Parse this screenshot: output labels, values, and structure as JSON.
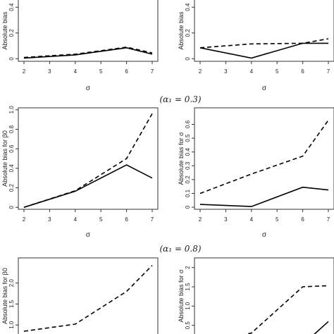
{
  "captions": [
    "(α₁ = 0.3)",
    "(α₁ = 0.8)"
  ],
  "chart_data": [
    {
      "type": "line",
      "ylabel": "Absolute bias",
      "xlabel": "σ",
      "x": [
        2,
        4,
        6,
        7
      ],
      "xticks": [
        2,
        3,
        4,
        5,
        6,
        7
      ],
      "ylim": [
        -0.02,
        0.62
      ],
      "yticks": [
        0.0,
        0.2,
        0.4
      ],
      "ytick_labels": [
        "0",
        "0.2",
        "0.4"
      ],
      "series": [
        {
          "style": "solid",
          "values": [
            0.005,
            0.03,
            0.085,
            0.035
          ]
        },
        {
          "style": "dashed",
          "values": [
            0.01,
            0.035,
            0.09,
            0.045
          ]
        }
      ]
    },
    {
      "type": "line",
      "ylabel": "Absolute bias",
      "xlabel": "σ",
      "x": [
        2,
        4,
        6,
        7
      ],
      "xticks": [
        2,
        3,
        4,
        5,
        6,
        7
      ],
      "ylim": [
        -0.02,
        0.62
      ],
      "yticks": [
        0.0,
        0.2,
        0.4
      ],
      "ytick_labels": [
        "0",
        "0.2",
        "0.4"
      ],
      "series": [
        {
          "style": "solid",
          "values": [
            0.085,
            0.005,
            0.12,
            0.12
          ]
        },
        {
          "style": "dashed",
          "values": [
            0.085,
            0.115,
            0.12,
            0.155
          ]
        }
      ]
    },
    {
      "type": "line",
      "ylabel": "Absolute bias for β0",
      "xlabel": "σ",
      "x": [
        2,
        4,
        6,
        7
      ],
      "xticks": [
        2,
        3,
        4,
        5,
        6,
        7
      ],
      "ylim": [
        -0.02,
        1.02
      ],
      "yticks": [
        0.0,
        0.2,
        0.4,
        0.6,
        0.8,
        1.0
      ],
      "ytick_labels": [
        "0",
        "0.2",
        "0.4",
        "0.6",
        "0.8",
        "1.0"
      ],
      "series": [
        {
          "style": "solid",
          "values": [
            0.0,
            0.165,
            0.435,
            0.3
          ]
        },
        {
          "style": "dashed",
          "values": [
            0.0,
            0.17,
            0.5,
            0.96
          ]
        }
      ]
    },
    {
      "type": "line",
      "ylabel": "Absolute bias for σ",
      "xlabel": "σ",
      "x": [
        2,
        4,
        6,
        7
      ],
      "xticks": [
        2,
        3,
        4,
        5,
        6,
        7
      ],
      "ylim": [
        -0.015,
        0.72
      ],
      "yticks": [
        0.0,
        0.1,
        0.2,
        0.3,
        0.4,
        0.5,
        0.6
      ],
      "ytick_labels": [
        "0",
        "0.1",
        "0.2",
        "0.3",
        "0.4",
        "0.5",
        "0.6"
      ],
      "series": [
        {
          "style": "solid",
          "values": [
            0.02,
            0.005,
            0.145,
            0.125
          ]
        },
        {
          "style": "dashed",
          "values": [
            0.1,
            0.24,
            0.37,
            0.63
          ]
        }
      ]
    },
    {
      "type": "line",
      "ylabel": "Absolute bias for β0",
      "xlabel": "",
      "x": [
        2,
        4,
        6,
        7
      ],
      "xticks": [],
      "ylim": [
        0.55,
        2.6
      ],
      "yticks": [
        1.0,
        1.5,
        2.0
      ],
      "ytick_labels": [
        "1.0",
        "1.5",
        "2.0"
      ],
      "series": [
        {
          "style": "dashed",
          "values": [
            0.85,
            1.02,
            1.8,
            2.42
          ]
        }
      ]
    },
    {
      "type": "line",
      "ylabel": "Absolute bias for σ",
      "xlabel": "",
      "x": [
        2,
        4,
        6,
        7
      ],
      "xticks": [],
      "ylim": [
        0.02,
        2.25
      ],
      "yticks": [
        0.5,
        1.0,
        1.5,
        2.0
      ],
      "ytick_labels": [
        "0.5",
        "1.0",
        "1.5",
        "2"
      ],
      "series": [
        {
          "style": "solid",
          "values": [
            0.0,
            0.0,
            0.0,
            0.6
          ]
        },
        {
          "style": "dashed",
          "values": [
            0.0,
            0.3,
            1.5,
            1.53
          ]
        }
      ]
    }
  ]
}
